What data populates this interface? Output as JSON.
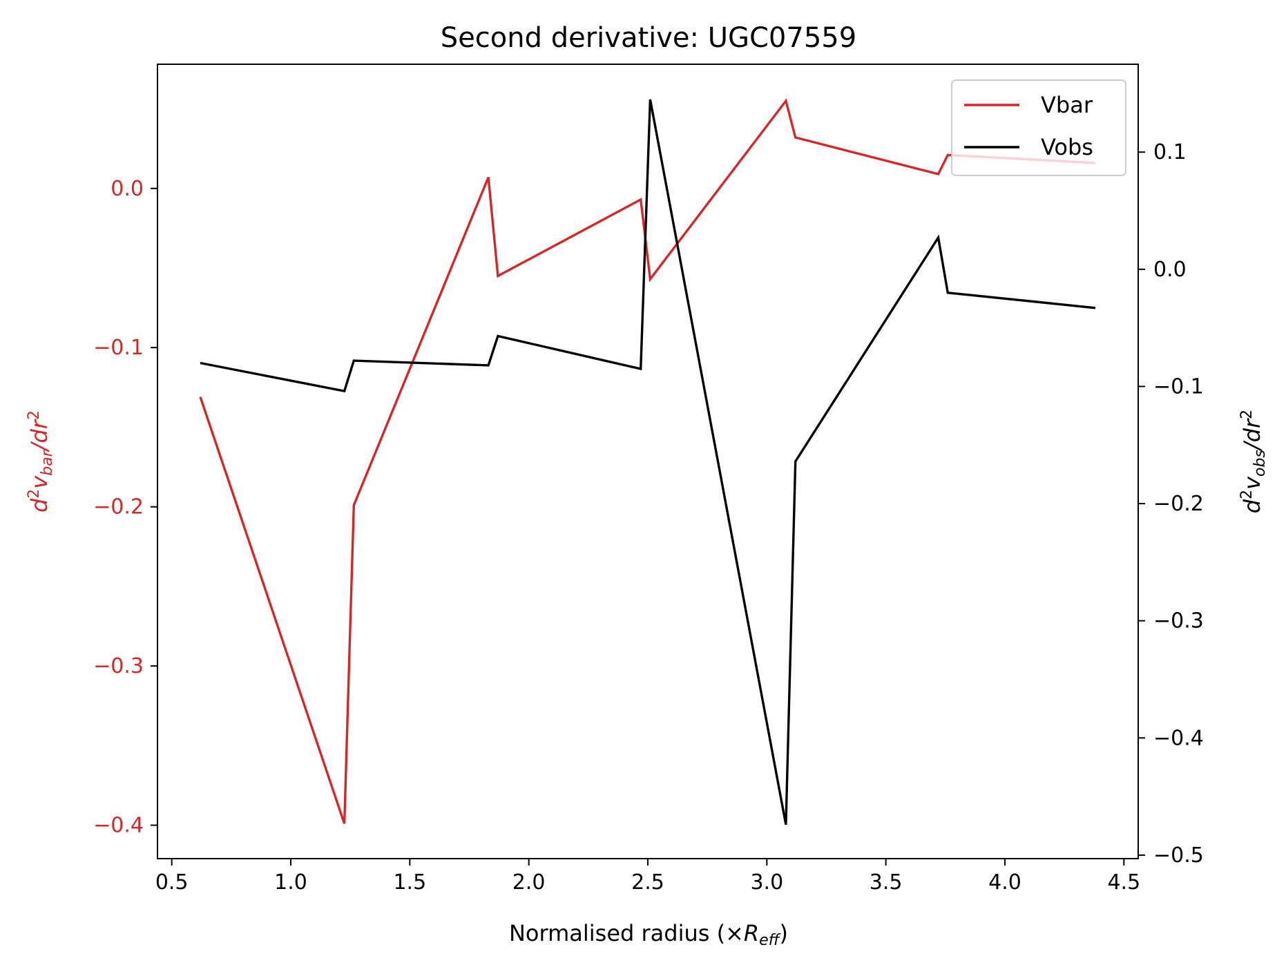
{
  "chart_data": {
    "type": "line",
    "title": "Second derivative: UGC07559",
    "xlabel": "Normalised radius (×R_eff)",
    "xlabel_parts": {
      "main": "Normalised radius (×",
      "italic": "R",
      "sub": "eff",
      "close": ")"
    },
    "ylabel_left": "d²v_bar/dr²",
    "ylabel_left_parts": {
      "d1": "d",
      "sup1": "2",
      "v": "v",
      "sub": "bar",
      "rest": "/dr",
      "sup2": "2"
    },
    "ylabel_right": "d²v_obs/dr²",
    "ylabel_right_parts": {
      "d1": "d",
      "sup1": "2",
      "v": "v",
      "sub": "obs",
      "rest": "/dr",
      "sup2": "2"
    },
    "xlim": [
      0.44,
      4.56
    ],
    "ylim_left": [
      -0.421,
      0.078
    ],
    "ylim_right": [
      -0.503,
      0.175
    ],
    "x_ticks": [
      "0.5",
      "1.0",
      "1.5",
      "2.0",
      "2.5",
      "3.0",
      "3.5",
      "4.0",
      "4.5"
    ],
    "y_left_ticks": [
      "0.0",
      "−0.1",
      "−0.2",
      "−0.3",
      "−0.4"
    ],
    "y_right_ticks": [
      "0.1",
      "0.0",
      "−0.1",
      "−0.2",
      "−0.3",
      "−0.4",
      "−0.5"
    ],
    "legend_position": "top-right",
    "colors": {
      "vbar": "#d62728",
      "vobs": "#000000",
      "left_axis": "#d62728",
      "right_axis": "#000000"
    },
    "series": [
      {
        "name": "Vbar",
        "axis": "left",
        "x": [
          0.62,
          1.225,
          1.265,
          1.83,
          1.87,
          2.47,
          2.51,
          3.08,
          3.12,
          3.72,
          3.76,
          4.38
        ],
        "values": [
          -0.131,
          -0.399,
          -0.199,
          0.007,
          -0.055,
          -0.007,
          -0.057,
          0.055,
          0.032,
          0.009,
          0.021,
          0.016
        ]
      },
      {
        "name": "Vobs",
        "axis": "right",
        "x": [
          0.62,
          1.225,
          1.265,
          1.83,
          1.87,
          2.47,
          2.51,
          3.08,
          3.12,
          3.72,
          3.76,
          4.38
        ],
        "values": [
          -0.08,
          -0.104,
          -0.078,
          -0.082,
          -0.057,
          -0.085,
          0.145,
          -0.474,
          -0.164,
          0.027,
          -0.02,
          -0.033
        ]
      }
    ]
  }
}
